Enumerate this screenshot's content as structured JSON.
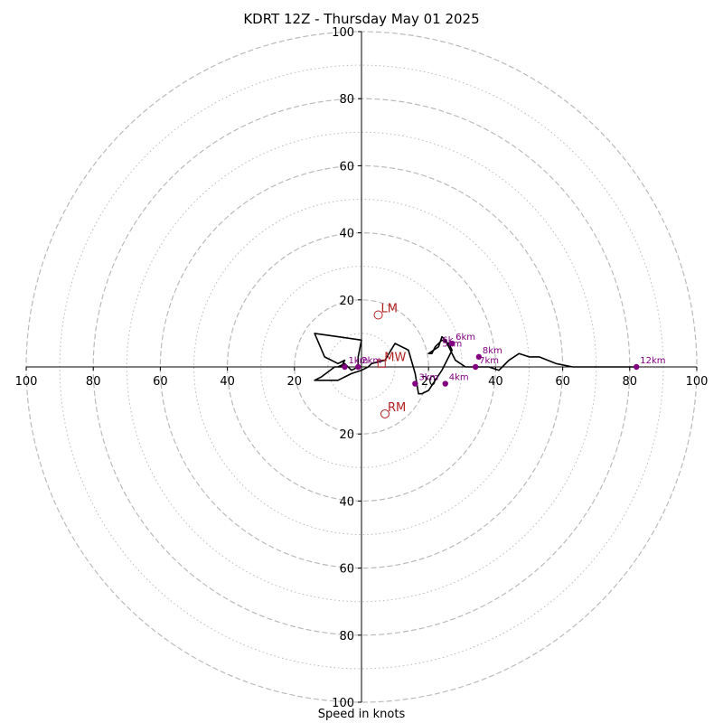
{
  "chart_data": {
    "type": "hodograph",
    "title": "KDRT 12Z - Thursday May 01 2025",
    "xlabel": "Speed in knots",
    "range": [
      -100,
      100
    ],
    "rings_dashed": [
      20,
      40,
      60,
      80,
      100
    ],
    "rings_dotted": [
      10,
      30,
      50,
      70,
      90
    ],
    "x_tick_labels": [
      "100",
      "80",
      "60",
      "40",
      "20",
      "",
      "20",
      "40",
      "60",
      "80",
      "100"
    ],
    "y_tick_labels": [
      "100",
      "80",
      "60",
      "40",
      "20",
      "20",
      "40",
      "60",
      "80",
      "100"
    ],
    "x_tick_values": [
      -100,
      -80,
      -60,
      -40,
      -20,
      0,
      20,
      40,
      60,
      80,
      100
    ],
    "y_tick_values": [
      100,
      80,
      60,
      40,
      20,
      -20,
      -40,
      -60,
      -80,
      -100
    ],
    "trace": [
      [
        -7,
        0
      ],
      [
        -5,
        1
      ],
      [
        -3,
        -1
      ],
      [
        -1,
        0
      ],
      [
        -1,
        1
      ],
      [
        -1,
        3
      ],
      [
        0,
        8
      ],
      [
        -7,
        9
      ],
      [
        -14,
        10
      ],
      [
        -11,
        3
      ],
      [
        -7,
        1
      ],
      [
        -5,
        2
      ],
      [
        -6,
        0
      ],
      [
        -8,
        0
      ],
      [
        -12,
        -3
      ],
      [
        -14,
        -4
      ],
      [
        -7,
        -4
      ],
      [
        -3,
        -2
      ],
      [
        0,
        -1
      ],
      [
        2,
        0
      ],
      [
        3,
        1
      ],
      [
        7,
        2
      ],
      [
        10,
        7
      ],
      [
        14,
        5
      ],
      [
        16,
        -2
      ],
      [
        17,
        -8
      ],
      [
        18,
        -8
      ],
      [
        20,
        -7
      ],
      [
        22,
        -4
      ],
      [
        24,
        -1
      ],
      [
        26,
        3
      ],
      [
        27,
        5
      ],
      [
        26,
        7
      ],
      [
        24,
        8
      ],
      [
        22,
        6
      ],
      [
        21,
        4
      ],
      [
        20,
        4
      ],
      [
        23,
        6
      ],
      [
        24,
        9
      ],
      [
        25,
        8
      ],
      [
        26,
        6
      ],
      [
        28,
        2
      ],
      [
        31,
        0
      ],
      [
        35,
        0
      ],
      [
        38,
        0
      ],
      [
        41,
        -1
      ],
      [
        42,
        0
      ],
      [
        44,
        2
      ],
      [
        47,
        4
      ],
      [
        50,
        3
      ],
      [
        53,
        3
      ],
      [
        58,
        1
      ],
      [
        63,
        0
      ],
      [
        70,
        0
      ],
      [
        76,
        0
      ],
      [
        82,
        0
      ]
    ],
    "height_points": [
      {
        "label": "1km",
        "u": -5,
        "v": 0
      },
      {
        "label": "2km",
        "u": -1,
        "v": 0
      },
      {
        "label": "3km",
        "u": 16,
        "v": -5
      },
      {
        "label": "4km",
        "u": 25,
        "v": -5
      },
      {
        "label": "6km",
        "u": 27,
        "v": 7
      },
      {
        "label": "7km",
        "u": 34,
        "v": 0
      },
      {
        "label": "8km",
        "u": 35,
        "v": 3
      },
      {
        "label": "12km",
        "u": 82,
        "v": 0
      }
    ],
    "extra_height_labels": [
      {
        "label": "5km",
        "u": 23,
        "v": 5
      },
      {
        "label": "6k",
        "u": 23,
        "v": 6
      }
    ],
    "motion_markers": [
      {
        "label": "LM",
        "u": 5,
        "v": 15.5,
        "shape": "circle"
      },
      {
        "label": "RM",
        "u": 7,
        "v": -14,
        "shape": "circle"
      },
      {
        "label": "MW",
        "u": 6,
        "v": 1,
        "shape": "square"
      }
    ],
    "colors": {
      "trace": "#000000",
      "height_points": "#800080",
      "motion_markers": "#b22222",
      "rings": "#bbbbbb"
    }
  }
}
